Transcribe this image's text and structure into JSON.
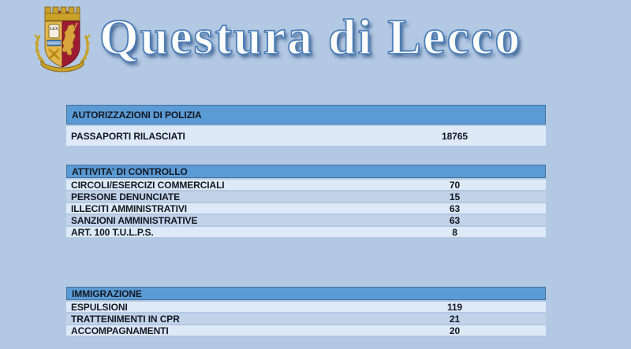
{
  "header": {
    "title": "Questura di Lecco",
    "logo": "polizia-di-stato-crest",
    "logo_motto": "LEX"
  },
  "sections": [
    {
      "title": "AUTORIZZAZIONI DI POLIZIA",
      "rows": [
        {
          "label": "PASSAPORTI RILASCIATI",
          "value": "18765"
        }
      ]
    },
    {
      "title": "ATTIVITA’ DI CONTROLLO",
      "rows": [
        {
          "label": "CIRCOLI/ESERCIZI COMMERCIALI",
          "value": "70"
        },
        {
          "label": "PERSONE DENUNCIATE",
          "value": "15"
        },
        {
          "label": "ILLECITI AMMINISTRATIVI",
          "value": "63"
        },
        {
          "label": "SANZIONI AMMINISTRATIVE",
          "value": "63"
        },
        {
          "label": "ART. 100 T.U.L.P.S.",
          "value": "8"
        }
      ]
    },
    {
      "title": "IMMIGRAZIONE",
      "rows": [
        {
          "label": "ESPULSIONI",
          "value": "119"
        },
        {
          "label": "TRATTENIMENTI IN CPR",
          "value": "21"
        },
        {
          "label": "ACCOMPAGNAMENTI",
          "value": "20"
        }
      ]
    }
  ],
  "colors": {
    "page_background": "#b3c8e2",
    "table_header": "#5b9bd5",
    "table_header_border": "#41719c",
    "row_light": "#dde9f6",
    "row_alternate": "#c2d2e9",
    "table_text": "#131822",
    "title_fill": "#ffffff",
    "title_outline": "#4c7fb9",
    "crest_gold": "#c9a227",
    "crest_red": "#9e1b32"
  }
}
